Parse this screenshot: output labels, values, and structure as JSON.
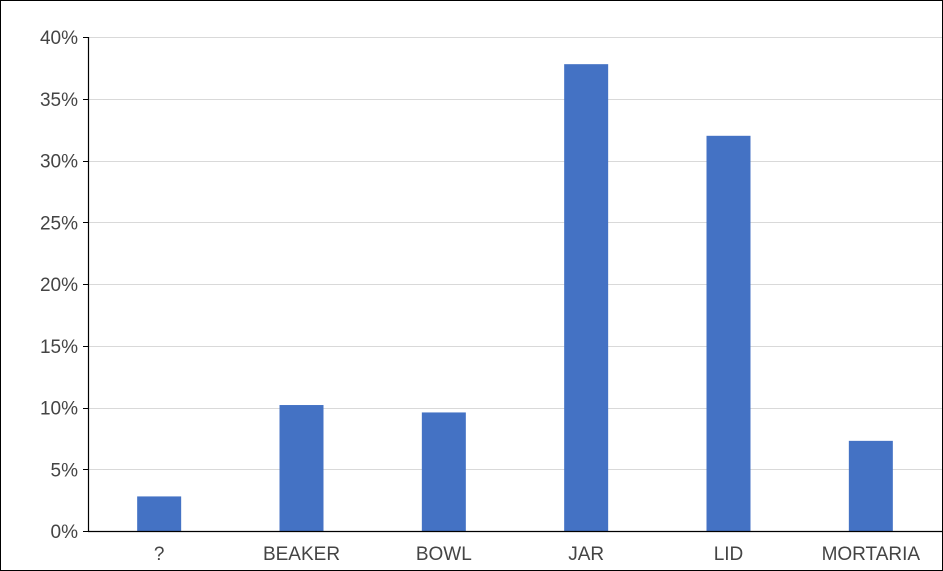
{
  "chart_data": {
    "type": "bar",
    "title": "",
    "xlabel": "",
    "ylabel": "",
    "categories": [
      "?",
      "BEAKER",
      "BOWL",
      "JAR",
      "LID",
      "MORTARIA"
    ],
    "values": [
      2.8,
      10.2,
      9.6,
      37.8,
      32.0,
      7.3
    ],
    "ylim": [
      0,
      40
    ],
    "yticks": [
      0,
      5,
      10,
      15,
      20,
      25,
      30,
      35,
      40
    ],
    "ytick_labels": [
      "0%",
      "5%",
      "10%",
      "15%",
      "20%",
      "25%",
      "30%",
      "35%",
      "40%"
    ],
    "grid": true,
    "legend": "none",
    "bar_color": "#4472c4",
    "grid_color": "#d9d9d9",
    "axis_color": "#000000"
  }
}
